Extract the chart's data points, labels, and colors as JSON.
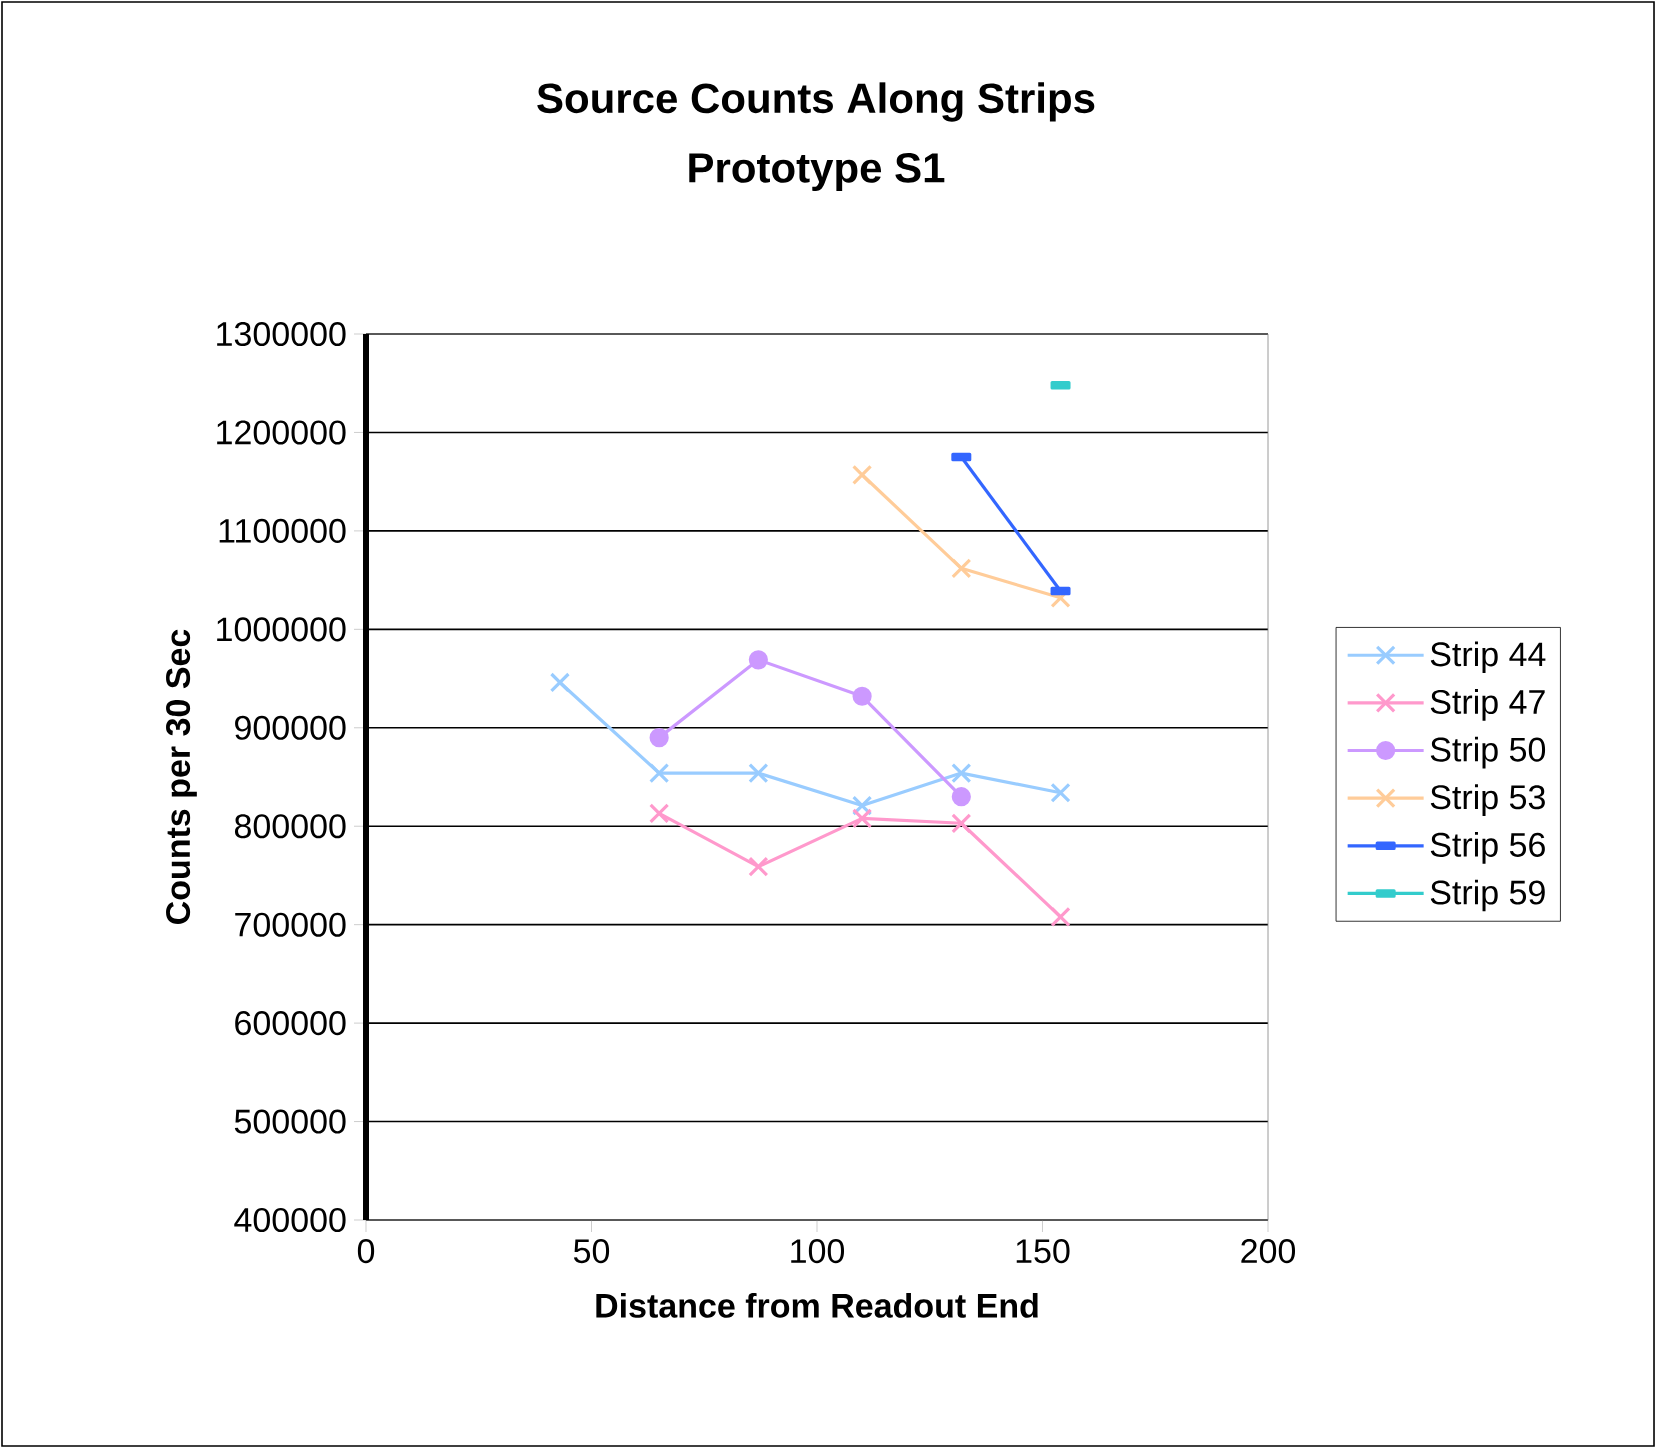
{
  "chart_data": {
    "type": "line",
    "title": "Source Counts Along Strips",
    "subtitle": "Prototype S1",
    "xlabel": "Distance from Readout End",
    "ylabel": "Counts per 30 Sec",
    "xlim": [
      0,
      200
    ],
    "xticks": [
      0,
      50,
      100,
      150,
      200
    ],
    "ylim": [
      400000,
      1300000
    ],
    "yticks": [
      400000,
      500000,
      600000,
      700000,
      800000,
      900000,
      1000000,
      1100000,
      1200000,
      1300000
    ],
    "grid": "y",
    "legend": "right",
    "series": [
      {
        "name": "Strip 44",
        "color": "#99ccff",
        "marker": "cross",
        "x": [
          43,
          65,
          87,
          110,
          132,
          154
        ],
        "values": [
          946000,
          854000,
          854000,
          821000,
          854000,
          834000
        ]
      },
      {
        "name": "Strip 47",
        "color": "#ff99cc",
        "marker": "cross",
        "x": [
          65,
          87,
          110,
          132,
          154
        ],
        "values": [
          813000,
          759000,
          808000,
          803000,
          708000
        ]
      },
      {
        "name": "Strip 50",
        "color": "#cc99ff",
        "marker": "circle",
        "x": [
          65,
          87,
          110,
          132
        ],
        "values": [
          890000,
          969000,
          932000,
          830000
        ]
      },
      {
        "name": "Strip 53",
        "color": "#ffcc99",
        "marker": "cross",
        "x": [
          110,
          132,
          154
        ],
        "values": [
          1157000,
          1062000,
          1032000
        ]
      },
      {
        "name": "Strip 56",
        "color": "#3366ff",
        "marker": "square",
        "x": [
          132,
          154
        ],
        "values": [
          1175000,
          1039000
        ]
      },
      {
        "name": "Strip 59",
        "color": "#33cccc",
        "marker": "square",
        "x": [
          154
        ],
        "values": [
          1248000
        ]
      }
    ]
  }
}
